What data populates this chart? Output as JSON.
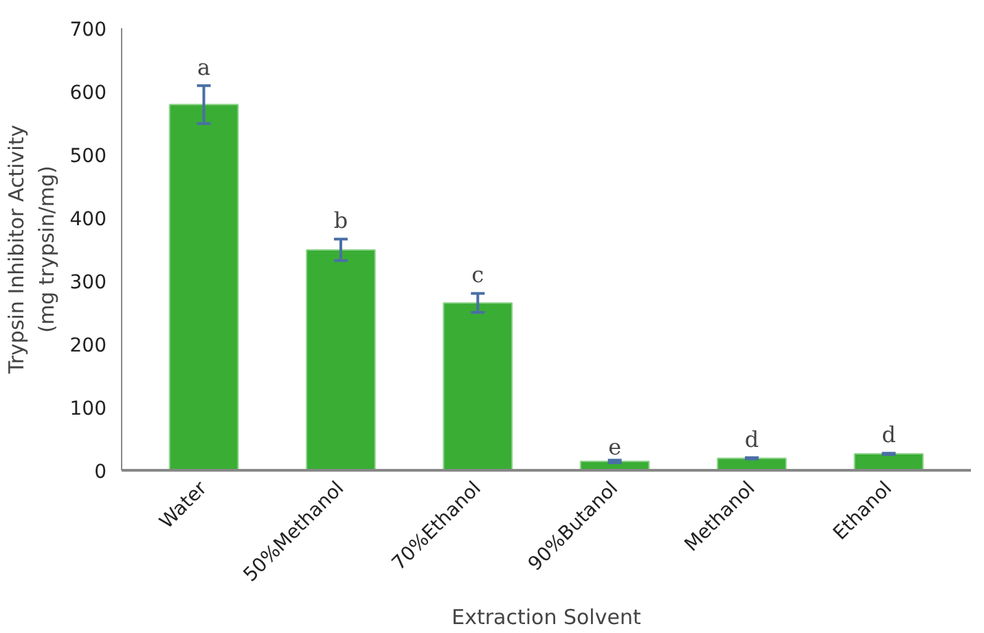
{
  "chart_data": {
    "type": "bar",
    "xlabel": "Extraction Solvent",
    "ylabel": "Trypsin Inhibitor Activity\n(mg trypsin/mg)",
    "categories": [
      "Water",
      "50%Methanol",
      "70%Ethanol",
      "90%Butanol",
      "Methanol",
      "Ethanol"
    ],
    "values": [
      579,
      349,
      265,
      14,
      19,
      26
    ],
    "errors": [
      30,
      17,
      15,
      2,
      1,
      1
    ],
    "color": "#3aad35",
    "ylim": [
      0,
      700
    ],
    "yticks": [
      0,
      100,
      200,
      300,
      400,
      500,
      600,
      700
    ],
    "grid": false,
    "annotations": [
      {
        "text": "a",
        "x": "Water",
        "y": 609
      },
      {
        "text": "b",
        "x": "50%Methanol",
        "y": 366
      },
      {
        "text": "c",
        "x": "70%Ethanol",
        "y": 280
      },
      {
        "text": "e",
        "x": "90%Butanol",
        "y": 16
      },
      {
        "text": "d",
        "x": "Methanol",
        "y": 20
      },
      {
        "text": "d",
        "x": "Ethanol",
        "y": 27
      }
    ]
  }
}
